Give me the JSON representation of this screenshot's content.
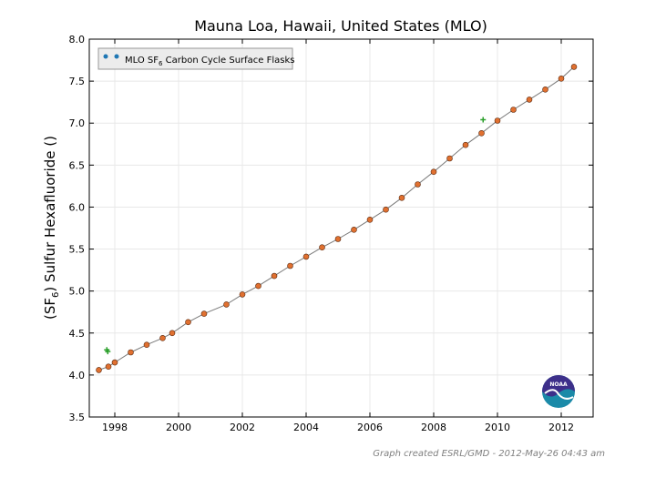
{
  "chart_data": {
    "type": "scatter",
    "title": "Mauna Loa, Hawaii, United States (MLO)",
    "ylabel": {
      "pre": "(SF",
      "sub": "6",
      "post": ") Sulfur Hexafluoride ()"
    },
    "xlabel": "",
    "xlim": [
      1997.2,
      2013.0
    ],
    "ylim": [
      3.5,
      8.0
    ],
    "x_ticks": [
      {
        "value": 1998,
        "label": "1998"
      },
      {
        "value": 2000,
        "label": "2000"
      },
      {
        "value": 2002,
        "label": "2002"
      },
      {
        "value": 2004,
        "label": "2004"
      },
      {
        "value": 2006,
        "label": "2006"
      },
      {
        "value": 2008,
        "label": "2008"
      },
      {
        "value": 2010,
        "label": "2010"
      },
      {
        "value": 2012,
        "label": "2012"
      }
    ],
    "y_ticks": [
      {
        "value": 3.5,
        "label": "3.5"
      },
      {
        "value": 4.0,
        "label": "4.0"
      },
      {
        "value": 4.5,
        "label": "4.5"
      },
      {
        "value": 5.0,
        "label": "5.0"
      },
      {
        "value": 5.5,
        "label": "5.5"
      },
      {
        "value": 6.0,
        "label": "6.0"
      },
      {
        "value": 6.5,
        "label": "6.5"
      },
      {
        "value": 7.0,
        "label": "7.0"
      },
      {
        "value": 7.5,
        "label": "7.5"
      },
      {
        "value": 8.0,
        "label": "8.0"
      }
    ],
    "grid": true,
    "legend": {
      "position": "top-left",
      "label_pre": "MLO SF",
      "label_sub": "6",
      "label_post": " Carbon Cycle Surface Flasks"
    },
    "series": [
      {
        "name": "MLO SF6 Carbon Cycle Surface Flasks",
        "color": "#e07030",
        "x": [
          1997.5,
          1997.8,
          1998.0,
          1998.5,
          1999.0,
          1999.5,
          1999.8,
          2000.3,
          2000.8,
          2001.5,
          2002.0,
          2002.5,
          2003.0,
          2003.5,
          2004.0,
          2004.5,
          2005.0,
          2005.5,
          2006.0,
          2006.5,
          2007.0,
          2007.5,
          2008.0,
          2008.5,
          2009.0,
          2009.5,
          2010.0,
          2010.5,
          2011.0,
          2011.5,
          2012.0,
          2012.4
        ],
        "y": [
          4.06,
          4.1,
          4.15,
          4.27,
          4.36,
          4.44,
          4.5,
          4.63,
          4.73,
          4.84,
          4.96,
          5.06,
          5.18,
          5.3,
          5.41,
          5.52,
          5.62,
          5.73,
          5.85,
          5.97,
          6.11,
          6.27,
          6.42,
          6.58,
          6.74,
          6.88,
          7.03,
          7.16,
          7.28,
          7.4,
          7.53,
          7.67
        ]
      },
      {
        "name": "",
        "color": "#2ca02c",
        "x": [
          1997.75,
          1997.78,
          2009.55
        ],
        "y": [
          4.3,
          4.28,
          7.04
        ]
      }
    ],
    "footer": "Graph created ESRL/GMD - 2012-May-26 04:43 am",
    "logo_text": "NOAA"
  }
}
